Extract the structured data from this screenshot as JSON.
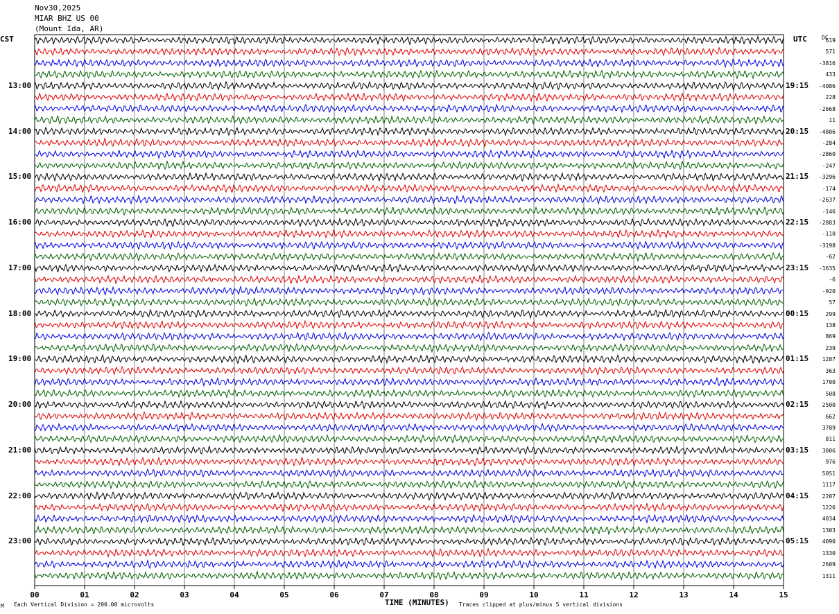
{
  "header": {
    "date": "Nov30,2025",
    "station": "MIAR BHZ US 00",
    "location": "(Mount Ida, AR)"
  },
  "left_zone_label": "CST",
  "right_zone_label": "UTC",
  "dc_label": "DC",
  "footer": {
    "scale_note": "Each Vertical Division =  200.00 microvolts",
    "clip_note": "Traces clipped at plus/minus 5 vertical divisions",
    "corner_mark": "M"
  },
  "colors": {
    "trace_cycle": [
      "#000000",
      "#e00000",
      "#0000e0",
      "#006000"
    ],
    "grid": "#000000"
  },
  "chart_data": {
    "type": "seismogram (helicorder)",
    "xlabel": "TIME (MINUTES)",
    "x_ticks": [
      "00",
      "01",
      "02",
      "03",
      "04",
      "05",
      "06",
      "07",
      "08",
      "09",
      "10",
      "11",
      "12",
      "13",
      "14",
      "15"
    ],
    "xlim": [
      0,
      15
    ],
    "trace_minutes": 15,
    "trace_count": 48,
    "left_hour_labels": [
      "13:00",
      "14:00",
      "15:00",
      "16:00",
      "17:00",
      "18:00",
      "19:00",
      "20:00",
      "21:00",
      "22:00",
      "23:00"
    ],
    "right_hour_labels": [
      "19:15",
      "20:15",
      "21:15",
      "22:15",
      "23:15",
      "00:15",
      "01:15",
      "02:15",
      "03:15",
      "04:15",
      "05:15"
    ],
    "dc_offsets": [
      "619",
      "571",
      "-3816",
      "433",
      "-4086",
      "228",
      "-2668",
      "11",
      "-4806",
      "-284",
      "-2860",
      "-247",
      "-3296",
      "-174",
      "-2637",
      "-146",
      "-2883",
      "-110",
      "-3198",
      "-62",
      "-1635",
      "-6",
      "-920",
      "57",
      "299",
      "138",
      "869",
      "239",
      "1287",
      "363",
      "1700",
      "508",
      "2500",
      "662",
      "3789",
      "811",
      "3006",
      "976",
      "5051",
      "1117",
      "2207",
      "1226",
      "4034",
      "1303",
      "4090",
      "1330",
      "2609",
      "1311"
    ]
  }
}
